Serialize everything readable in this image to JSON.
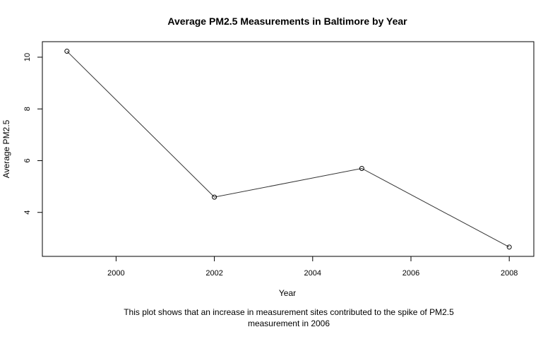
{
  "chart_data": {
    "type": "line",
    "title": "Average PM2.5 Measurements in Baltimore by Year",
    "xlabel": "Year",
    "ylabel": "Average PM2.5",
    "caption_lines": [
      "This plot shows that an increase in measurement sites contributed to the spike of PM2.5",
      "measurement in 2006"
    ],
    "x": [
      1999,
      2002,
      2005,
      2008
    ],
    "series": [
      {
        "values": [
          10.23,
          4.59,
          5.7,
          2.66
        ]
      }
    ],
    "xlim": [
      1998.5,
      2008.5
    ],
    "ylim": [
      2.3,
      10.6
    ],
    "xticks": [
      2000,
      2002,
      2004,
      2006,
      2008
    ],
    "yticks": [
      4,
      6,
      8,
      10
    ],
    "xtick_labels": [
      "2000",
      "2002",
      "2004",
      "2006",
      "2008"
    ],
    "ytick_labels": [
      "4",
      "6",
      "8",
      "10"
    ],
    "grid": false,
    "marker": "open-circle",
    "colors": {
      "line": "#333333",
      "frame": "#000000",
      "background": "#ffffff"
    }
  }
}
